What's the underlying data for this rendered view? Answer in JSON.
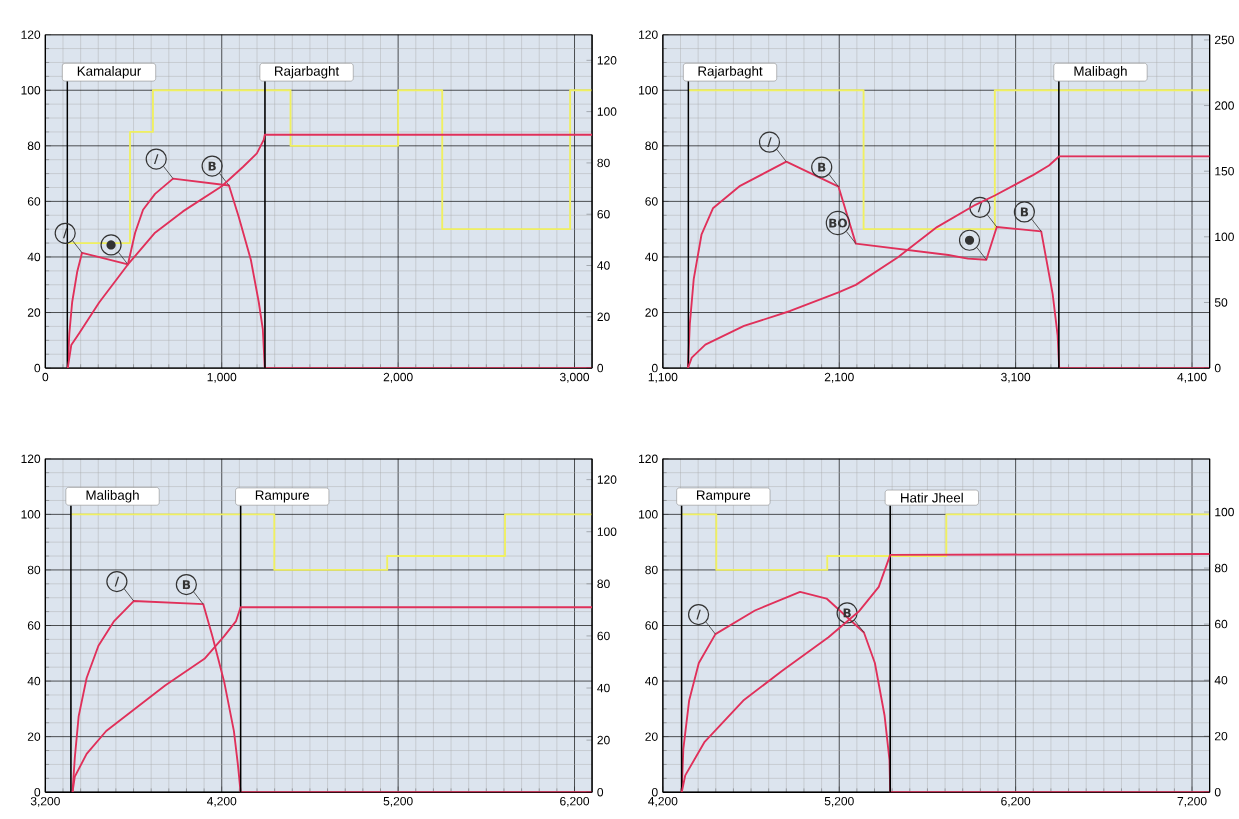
{
  "chart_data": [
    {
      "type": "line",
      "xlim": [
        0,
        3100
      ],
      "xticks": [
        0,
        {
          "value": 1000,
          "label": "1,000"
        },
        {
          "value": 2000,
          "label": "2,000"
        },
        {
          "value": 3000,
          "label": "3,000"
        }
      ],
      "ylim": [
        0,
        120
      ],
      "yticks": [
        0,
        20,
        40,
        60,
        80,
        100,
        120
      ],
      "y2lim": [
        0,
        130
      ],
      "y2ticks": [
        0,
        20,
        40,
        60,
        80,
        100,
        120
      ],
      "grid": true,
      "marker": "none",
      "series": [
        {
          "type": "step",
          "color": "#f0f060",
          "x": [
            125,
            480,
            610,
            1390,
            2000,
            2250,
            2975,
            3100
          ],
          "values": [
            45,
            85,
            100,
            80,
            100,
            50,
            100,
            100
          ]
        },
        {
          "color": "#e0305a",
          "x": [
            127,
            136,
            152,
            181,
            208,
            468,
            509,
            554,
            622,
            724,
            1041,
            1097,
            1165,
            1210,
            1233,
            1244,
            3100
          ],
          "values": [
            0,
            12.5,
            23.7,
            34.8,
            41.5,
            37.3,
            48.7,
            57,
            62.7,
            68.2,
            65.7,
            54.3,
            39,
            23.7,
            13.9,
            0,
            0
          ]
        },
        {
          "color": "#e0305a",
          "axis": "y2",
          "x": [
            127,
            147,
            192,
            305,
            468,
            622,
            780,
            1000,
            1120,
            1199,
            1238,
            1244,
            3100
          ],
          "values": [
            0,
            9,
            13.6,
            25.6,
            40.4,
            52.8,
            61.1,
            70.9,
            78.4,
            83.7,
            89,
            91,
            91
          ]
        }
      ],
      "ref_lines": [
        {
          "axis": "x",
          "value": 125,
          "label": "Kamalapur"
        },
        {
          "axis": "x",
          "value": 1245,
          "label": "Rajarbaght"
        }
      ],
      "annotations": [
        {
          "text": "/",
          "x": 208,
          "y": 41.5
        },
        {
          "text": "●",
          "x": 468,
          "y": 37.3
        },
        {
          "text": "/",
          "x": 724,
          "y": 68.2
        },
        {
          "text": "B",
          "x": 1041,
          "y": 65.7
        }
      ]
    },
    {
      "type": "line",
      "xlim": [
        1100,
        4200
      ],
      "xticks": [
        {
          "value": 1100,
          "label": "1,100"
        },
        {
          "value": 2100,
          "label": "2,100"
        },
        {
          "value": 3100,
          "label": "3,100"
        },
        {
          "value": 4100,
          "label": "4,100"
        }
      ],
      "ylim": [
        0,
        120
      ],
      "yticks": [
        0,
        20,
        40,
        60,
        80,
        100,
        120
      ],
      "y2lim": [
        0,
        254
      ],
      "y2ticks": [
        0,
        50,
        100,
        150,
        200,
        250
      ],
      "grid": true,
      "marker": "none",
      "series": [
        {
          "type": "step",
          "color": "#f0f060",
          "x": [
            1245,
            2238,
            2982,
            4200
          ],
          "values": [
            100,
            50,
            100,
            100
          ]
        },
        {
          "color": "#e0305a",
          "x": [
            1242,
            1253,
            1275,
            1319,
            1384,
            1538,
            1800,
            2096,
            2194,
            2719,
            2829,
            2934,
            2993,
            3245,
            3310,
            3338,
            3347,
            4200
          ],
          "values": [
            0,
            15.9,
            32,
            48,
            57.5,
            65.6,
            74.3,
            65.3,
            44.8,
            40.7,
            39.4,
            39,
            50.8,
            49.2,
            26.6,
            11.8,
            0,
            0
          ]
        },
        {
          "color": "#e0305a",
          "axis": "y2",
          "x": [
            1242,
            1264,
            1341,
            1560,
            1822,
            2096,
            2194,
            2435,
            2654,
            2872,
            2982,
            3201,
            3289,
            3347,
            4200
          ],
          "values": [
            0,
            8,
            17.9,
            32.1,
            43.5,
            57.7,
            63.4,
            84.7,
            107.4,
            124.4,
            131.5,
            147.2,
            154.3,
            161.4,
            161.4
          ]
        }
      ],
      "ref_lines": [
        {
          "axis": "x",
          "value": 1245,
          "label": "Rajarbaght"
        },
        {
          "axis": "x",
          "value": 3345,
          "label": "Malibagh"
        }
      ],
      "annotations": [
        {
          "text": "/",
          "x": 1800,
          "y": 74.3
        },
        {
          "text": "B",
          "x": 2096,
          "y": 65.3
        },
        {
          "text": "BO",
          "x": 2194,
          "y": 44.8
        },
        {
          "text": "/",
          "x": 2993,
          "y": 50.8
        },
        {
          "text": "●",
          "x": 2934,
          "y": 39
        },
        {
          "text": "B",
          "x": 3245,
          "y": 49.2
        }
      ]
    },
    {
      "type": "line",
      "xlim": [
        3200,
        6300
      ],
      "xticks": [
        {
          "value": 3200,
          "label": "3,200"
        },
        {
          "value": 4200,
          "label": "4,200"
        },
        {
          "value": 5200,
          "label": "5,200"
        },
        {
          "value": 6200,
          "label": "6,200"
        }
      ],
      "ylim": [
        0,
        120
      ],
      "yticks": [
        0,
        20,
        40,
        60,
        80,
        100,
        120
      ],
      "y2lim": [
        0,
        128
      ],
      "y2ticks": [
        0,
        20,
        40,
        60,
        80,
        100,
        120
      ],
      "grid": true,
      "marker": "none",
      "series": [
        {
          "type": "step",
          "color": "#f0f060",
          "x": [
            3345,
            4498,
            5138,
            5806,
            6300
          ],
          "values": [
            100,
            80,
            85,
            100,
            100
          ]
        },
        {
          "color": "#e0305a",
          "x": [
            3354,
            3367,
            3389,
            3434,
            3501,
            3590,
            3701,
            4095,
            4147,
            4214,
            4269,
            4292,
            4307,
            6300
          ],
          "values": [
            0,
            12.4,
            27.4,
            41.1,
            52.7,
            61.6,
            68.8,
            67.7,
            56.1,
            39.7,
            22,
            9.7,
            0,
            0
          ]
        },
        {
          "color": "#e0305a",
          "axis": "y2",
          "x": [
            3354,
            3367,
            3434,
            3545,
            3879,
            4102,
            4214,
            4281,
            4307,
            6300
          ],
          "values": [
            0,
            6,
            14.7,
            23.5,
            41,
            51.2,
            59.9,
            65.7,
            71,
            71
          ]
        }
      ],
      "ref_lines": [
        {
          "axis": "x",
          "value": 3345,
          "label": "Malibagh"
        },
        {
          "axis": "x",
          "value": 4307,
          "label": "Rampure"
        }
      ],
      "annotations": [
        {
          "text": "/",
          "x": 3701,
          "y": 68.8
        },
        {
          "text": "B",
          "x": 4095,
          "y": 67.7
        }
      ]
    },
    {
      "type": "line",
      "xlim": [
        4200,
        7300
      ],
      "xticks": [
        {
          "value": 4200,
          "label": "4,200"
        },
        {
          "value": 5200,
          "label": "5,200"
        },
        {
          "value": 6200,
          "label": "6,200"
        },
        {
          "value": 7200,
          "label": "7,200"
        }
      ],
      "ylim": [
        0,
        120
      ],
      "yticks": [
        0,
        20,
        40,
        60,
        80,
        100,
        120
      ],
      "y2lim": [
        0,
        119
      ],
      "y2ticks": [
        0,
        20,
        40,
        60,
        80,
        100
      ],
      "grid": true,
      "marker": "none",
      "series": [
        {
          "type": "step",
          "color": "#f0f060",
          "x": [
            4307,
            4503,
            5132,
            5807,
            7300
          ],
          "values": [
            100,
            80,
            85,
            100,
            100
          ]
        },
        {
          "color": "#e0305a",
          "x": [
            4307,
            4316,
            4349,
            4404,
            4498,
            4722,
            4978,
            5128,
            5340,
            5402,
            5457,
            5485,
            5489,
            7300
          ],
          "values": [
            0,
            15.5,
            33,
            46.5,
            56.9,
            65.4,
            72.1,
            69.7,
            57.5,
            46.5,
            27.6,
            11.5,
            0,
            0
          ]
        },
        {
          "color": "#e0305a",
          "axis": "y2",
          "x": [
            4307,
            4327,
            4437,
            4656,
            4875,
            5139,
            5314,
            5424,
            5489,
            7300
          ],
          "values": [
            0,
            6,
            18,
            32.7,
            43.3,
            55.3,
            64.7,
            73.3,
            84.7,
            85
          ]
        }
      ],
      "ref_lines": [
        {
          "axis": "x",
          "value": 4307,
          "label": "Rampure"
        },
        {
          "axis": "x",
          "value": 5489,
          "label": "Hatir Jheel"
        }
      ],
      "annotations": [
        {
          "text": "/",
          "x": 4498,
          "y": 56.9
        },
        {
          "text": "B",
          "x": 5340,
          "y": 57.5
        }
      ]
    }
  ]
}
